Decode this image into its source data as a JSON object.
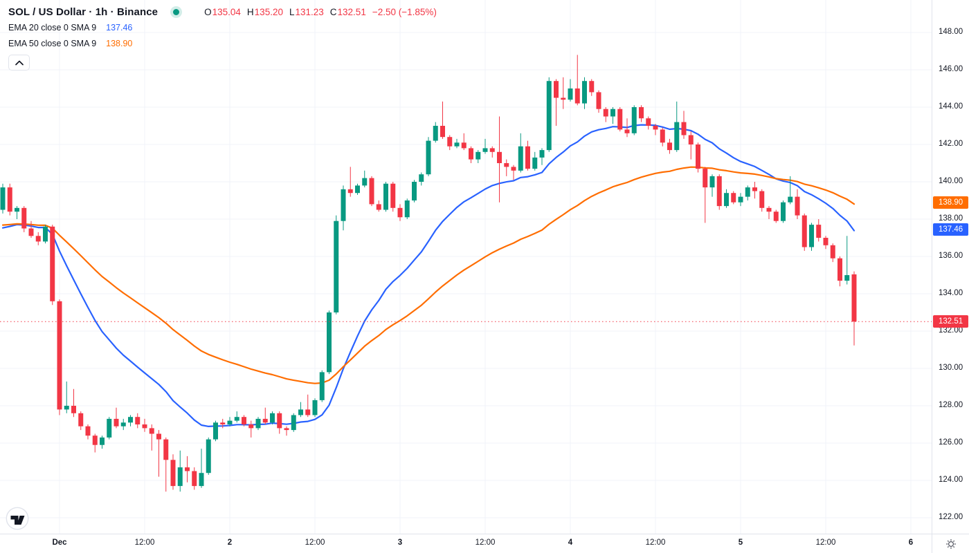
{
  "header": {
    "symbol_title": "SOL / US Dollar · 1h · Binance",
    "ohlc": {
      "open_label": "O",
      "open": "135.04",
      "high_label": "H",
      "high": "135.20",
      "low_label": "L",
      "low": "131.23",
      "close_label": "C",
      "close": "132.51",
      "change": "−2.50 (−1.85%)"
    },
    "indicators": [
      {
        "label": "EMA 20 close 0 SMA 9",
        "value": "137.46"
      },
      {
        "label": "EMA 50 close 0 SMA 9",
        "value": "138.90"
      }
    ]
  },
  "colors": {
    "up": "#089981",
    "down": "#f23645",
    "ema_fast": "#2962ff",
    "ema_slow": "#ff6d00",
    "grid": "#f0f3fa",
    "axis_text": "#131722",
    "axis_border": "#e0e3eb",
    "last_price": "#f23645",
    "status_dot": "#089981",
    "background": "#ffffff"
  },
  "price_axis": {
    "ticks": [
      "148.00",
      "146.00",
      "144.00",
      "142.00",
      "140.00",
      "138.00",
      "136.00",
      "134.00",
      "132.00",
      "130.00",
      "128.00",
      "126.00",
      "124.00",
      "122.00"
    ],
    "value_labels": [
      {
        "name": "ema50-value-label",
        "text": "138.90",
        "price": 138.9,
        "color": "#ff6d00"
      },
      {
        "name": "ema20-value-label",
        "text": "137.46",
        "price": 137.46,
        "color": "#2962ff"
      },
      {
        "name": "last-price-label",
        "text": "132.51",
        "price": 132.51,
        "color": "#f23645"
      }
    ]
  },
  "time_axis": {
    "labels": [
      {
        "text": "Dec",
        "bar": 8,
        "major": true
      },
      {
        "text": "12:00",
        "bar": 20,
        "major": false
      },
      {
        "text": "2",
        "bar": 32,
        "major": true
      },
      {
        "text": "12:00",
        "bar": 44,
        "major": false
      },
      {
        "text": "3",
        "bar": 56,
        "major": true
      },
      {
        "text": "12:00",
        "bar": 68,
        "major": false
      },
      {
        "text": "4",
        "bar": 80,
        "major": true
      },
      {
        "text": "12:00",
        "bar": 92,
        "major": false
      },
      {
        "text": "5",
        "bar": 104,
        "major": true
      },
      {
        "text": "12:00",
        "bar": 116,
        "major": false
      },
      {
        "text": "6",
        "bar": 128,
        "major": true
      }
    ]
  },
  "chart_data": {
    "type": "candlestick",
    "title": "SOL / US Dollar",
    "interval": "1h",
    "exchange": "Binance",
    "ylim": [
      120.5,
      149.7
    ],
    "y_tick_step": 2,
    "grid": true,
    "last_close": 132.51,
    "overlays": [
      {
        "name": "EMA 20",
        "period": 20,
        "seed": 137.3,
        "color": "#2962ff"
      },
      {
        "name": "EMA 50",
        "period": 50,
        "seed": 137.6,
        "color": "#ff6d00"
      }
    ],
    "candles_ohlc": [
      [
        138.5,
        139.9,
        138.3,
        139.7
      ],
      [
        139.7,
        139.9,
        138.2,
        138.4
      ],
      [
        138.4,
        138.7,
        138.0,
        138.6
      ],
      [
        138.6,
        138.7,
        137.3,
        137.5
      ],
      [
        137.5,
        137.9,
        137.0,
        137.1
      ],
      [
        137.1,
        137.3,
        136.6,
        136.8
      ],
      [
        136.8,
        137.7,
        136.7,
        137.6
      ],
      [
        137.6,
        137.7,
        133.4,
        133.6
      ],
      [
        133.6,
        133.7,
        127.5,
        127.8
      ],
      [
        127.8,
        129.3,
        127.6,
        128.0
      ],
      [
        128.0,
        128.9,
        127.4,
        127.6
      ],
      [
        127.6,
        127.7,
        126.7,
        126.9
      ],
      [
        126.9,
        127.0,
        126.2,
        126.4
      ],
      [
        126.4,
        126.5,
        125.5,
        125.9
      ],
      [
        125.9,
        126.4,
        125.7,
        126.3
      ],
      [
        126.3,
        127.4,
        126.2,
        127.3
      ],
      [
        127.3,
        127.9,
        126.8,
        126.9
      ],
      [
        126.9,
        127.3,
        126.7,
        127.1
      ],
      [
        127.1,
        127.5,
        126.9,
        127.4
      ],
      [
        127.4,
        127.6,
        126.8,
        127.0
      ],
      [
        127.0,
        127.3,
        126.6,
        126.8
      ],
      [
        126.8,
        127.0,
        125.6,
        126.5
      ],
      [
        126.5,
        126.7,
        124.2,
        126.2
      ],
      [
        126.2,
        126.3,
        123.4,
        125.1
      ],
      [
        125.1,
        125.4,
        123.5,
        123.7
      ],
      [
        123.7,
        125.6,
        123.4,
        124.7
      ],
      [
        124.7,
        125.3,
        123.9,
        124.5
      ],
      [
        124.5,
        124.7,
        123.5,
        123.7
      ],
      [
        123.7,
        125.7,
        123.6,
        124.4
      ],
      [
        124.4,
        126.3,
        124.3,
        126.2
      ],
      [
        126.2,
        127.2,
        126.1,
        127.1
      ],
      [
        127.1,
        127.3,
        126.8,
        127.0
      ],
      [
        127.0,
        127.4,
        126.9,
        127.2
      ],
      [
        127.2,
        127.7,
        127.1,
        127.4
      ],
      [
        127.4,
        127.5,
        126.9,
        127.0
      ],
      [
        127.0,
        127.2,
        126.3,
        126.8
      ],
      [
        126.8,
        127.4,
        126.7,
        127.3
      ],
      [
        127.3,
        127.9,
        127.0,
        127.1
      ],
      [
        127.1,
        127.7,
        127.0,
        127.6
      ],
      [
        127.6,
        127.7,
        126.5,
        126.8
      ],
      [
        126.8,
        126.9,
        126.4,
        126.7
      ],
      [
        126.7,
        127.6,
        126.6,
        127.5
      ],
      [
        127.5,
        128.2,
        127.4,
        127.8
      ],
      [
        127.8,
        128.6,
        127.4,
        127.5
      ],
      [
        127.5,
        128.4,
        127.4,
        128.3
      ],
      [
        128.3,
        129.9,
        128.2,
        129.8
      ],
      [
        129.8,
        133.1,
        129.7,
        133.0
      ],
      [
        133.0,
        138.2,
        132.9,
        137.9
      ],
      [
        137.9,
        139.8,
        137.4,
        139.6
      ],
      [
        139.6,
        140.8,
        139.2,
        139.4
      ],
      [
        139.4,
        139.9,
        139.3,
        139.8
      ],
      [
        139.8,
        140.6,
        139.7,
        140.2
      ],
      [
        140.2,
        140.3,
        138.7,
        138.8
      ],
      [
        138.8,
        139.0,
        138.4,
        138.5
      ],
      [
        138.5,
        140.0,
        138.4,
        139.9
      ],
      [
        139.9,
        140.0,
        138.4,
        138.6
      ],
      [
        138.6,
        138.8,
        137.9,
        138.1
      ],
      [
        138.1,
        139.1,
        138.0,
        139.0
      ],
      [
        139.0,
        140.1,
        138.9,
        140.0
      ],
      [
        140.0,
        140.5,
        139.8,
        140.4
      ],
      [
        140.4,
        142.4,
        140.3,
        142.2
      ],
      [
        142.2,
        143.2,
        142.1,
        143.0
      ],
      [
        143.0,
        144.3,
        142.3,
        142.4
      ],
      [
        142.4,
        142.5,
        141.7,
        141.9
      ],
      [
        141.9,
        142.3,
        141.8,
        142.1
      ],
      [
        142.1,
        142.6,
        141.7,
        141.8
      ],
      [
        141.8,
        141.9,
        141.0,
        141.2
      ],
      [
        141.2,
        141.7,
        141.0,
        141.6
      ],
      [
        141.6,
        142.3,
        141.5,
        141.8
      ],
      [
        141.8,
        141.9,
        141.3,
        141.6
      ],
      [
        141.6,
        143.5,
        138.9,
        141.0
      ],
      [
        141.0,
        141.2,
        140.3,
        140.8
      ],
      [
        140.8,
        140.9,
        140.1,
        140.6
      ],
      [
        140.6,
        142.6,
        140.5,
        141.9
      ],
      [
        141.9,
        142.2,
        140.6,
        140.7
      ],
      [
        140.7,
        141.6,
        140.6,
        141.3
      ],
      [
        141.3,
        141.8,
        140.9,
        141.7
      ],
      [
        141.7,
        145.6,
        141.6,
        145.4
      ],
      [
        145.4,
        145.5,
        143.0,
        144.5
      ],
      [
        144.5,
        145.6,
        143.9,
        144.4
      ],
      [
        144.4,
        145.5,
        144.3,
        145.0
      ],
      [
        145.0,
        146.8,
        144.1,
        144.2
      ],
      [
        144.2,
        145.6,
        143.9,
        145.4
      ],
      [
        145.4,
        145.5,
        144.6,
        144.8
      ],
      [
        144.8,
        144.9,
        143.7,
        143.9
      ],
      [
        143.9,
        144.0,
        143.2,
        143.5
      ],
      [
        143.5,
        144.0,
        143.1,
        143.9
      ],
      [
        143.9,
        144.0,
        142.7,
        142.8
      ],
      [
        142.8,
        143.4,
        142.4,
        142.6
      ],
      [
        142.6,
        144.1,
        142.5,
        144.0
      ],
      [
        144.0,
        144.1,
        143.2,
        143.4
      ],
      [
        143.4,
        143.5,
        142.8,
        143.0
      ],
      [
        143.0,
        143.1,
        142.5,
        142.8
      ],
      [
        142.8,
        142.9,
        141.9,
        142.1
      ],
      [
        142.1,
        142.3,
        141.5,
        141.7
      ],
      [
        141.7,
        144.3,
        141.6,
        143.2
      ],
      [
        143.2,
        143.8,
        142.3,
        142.5
      ],
      [
        142.5,
        142.7,
        141.2,
        142.0
      ],
      [
        142.0,
        142.1,
        140.5,
        140.7
      ],
      [
        140.7,
        140.8,
        137.8,
        139.7
      ],
      [
        139.7,
        140.4,
        139.2,
        140.3
      ],
      [
        140.3,
        140.4,
        138.5,
        138.7
      ],
      [
        138.7,
        139.6,
        138.6,
        139.4
      ],
      [
        139.4,
        139.5,
        138.8,
        138.9
      ],
      [
        138.9,
        139.4,
        138.7,
        139.2
      ],
      [
        139.2,
        139.8,
        139.0,
        139.7
      ],
      [
        139.7,
        140.0,
        139.1,
        139.5
      ],
      [
        139.5,
        139.6,
        138.4,
        138.6
      ],
      [
        138.6,
        138.7,
        138.0,
        138.4
      ],
      [
        138.4,
        138.5,
        137.8,
        137.9
      ],
      [
        137.9,
        139.0,
        137.8,
        138.9
      ],
      [
        138.9,
        140.3,
        138.8,
        139.2
      ],
      [
        139.2,
        139.6,
        138.0,
        138.2
      ],
      [
        138.2,
        138.3,
        136.3,
        136.5
      ],
      [
        136.5,
        137.8,
        136.3,
        137.7
      ],
      [
        137.7,
        138.0,
        136.8,
        137.0
      ],
      [
        137.0,
        137.1,
        136.4,
        136.6
      ],
      [
        136.6,
        136.7,
        135.7,
        135.9
      ],
      [
        135.9,
        136.0,
        134.4,
        134.7
      ],
      [
        134.7,
        137.1,
        134.5,
        135.0
      ],
      [
        135.04,
        135.2,
        131.23,
        132.51
      ]
    ]
  }
}
